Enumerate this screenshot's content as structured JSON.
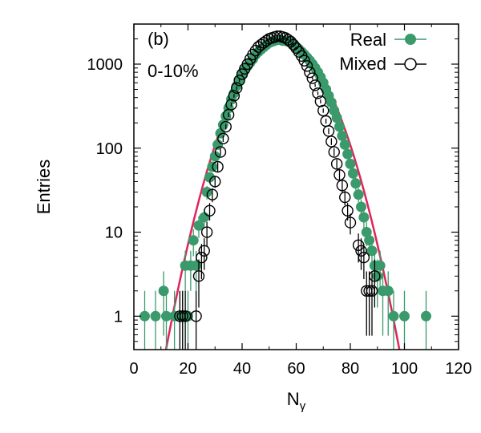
{
  "chart_data": {
    "type": "scatter",
    "panel_label": "(b)",
    "annotation": "0-10%",
    "xlabel_main": "N",
    "xlabel_sub": "γ",
    "ylabel": "Entries",
    "xlim": [
      0,
      120
    ],
    "ylim": [
      0.4,
      3000
    ],
    "yscale": "log",
    "x_ticks": [
      0,
      20,
      40,
      60,
      80,
      100,
      120
    ],
    "x_tick_labels": [
      "0",
      "20",
      "40",
      "60",
      "80",
      "100",
      "120"
    ],
    "y_ticks": [
      1,
      10,
      100,
      1000
    ],
    "y_tick_labels": [
      "1",
      "10",
      "100",
      "1000"
    ],
    "legend_position": "top-right",
    "grid": false,
    "colors": {
      "real": "#3a9a6c",
      "mixed": "#000000",
      "fit": "#e0245a"
    },
    "fit_curve": {
      "type": "gaussian",
      "mean": 55,
      "sigma": 10.5,
      "amplitude": 1850
    },
    "series": [
      {
        "name": "Real",
        "marker": "filled-circle",
        "points": [
          {
            "x": 4,
            "y": 1
          },
          {
            "x": 8,
            "y": 1
          },
          {
            "x": 11,
            "y": 2
          },
          {
            "x": 12,
            "y": 1
          },
          {
            "x": 15,
            "y": 1
          },
          {
            "x": 18,
            "y": 1
          },
          {
            "x": 20,
            "y": 1
          },
          {
            "x": 19,
            "y": 4
          },
          {
            "x": 21,
            "y": 4
          },
          {
            "x": 22,
            "y": 8
          },
          {
            "x": 23,
            "y": 4
          },
          {
            "x": 24,
            "y": 12
          },
          {
            "x": 26,
            "y": 15
          },
          {
            "x": 27,
            "y": 30
          },
          {
            "x": 28,
            "y": 45
          },
          {
            "x": 29,
            "y": 60
          },
          {
            "x": 30,
            "y": 80
          },
          {
            "x": 31,
            "y": 110
          },
          {
            "x": 32,
            "y": 150
          },
          {
            "x": 33,
            "y": 190
          },
          {
            "x": 34,
            "y": 240
          },
          {
            "x": 35,
            "y": 300
          },
          {
            "x": 36,
            "y": 380
          },
          {
            "x": 37,
            "y": 450
          },
          {
            "x": 38,
            "y": 550
          },
          {
            "x": 39,
            "y": 650
          },
          {
            "x": 40,
            "y": 750
          },
          {
            "x": 41,
            "y": 850
          },
          {
            "x": 42,
            "y": 950
          },
          {
            "x": 43,
            "y": 1050
          },
          {
            "x": 44,
            "y": 1150
          },
          {
            "x": 45,
            "y": 1300
          },
          {
            "x": 46,
            "y": 1400
          },
          {
            "x": 47,
            "y": 1500
          },
          {
            "x": 48,
            "y": 1600
          },
          {
            "x": 49,
            "y": 1700
          },
          {
            "x": 50,
            "y": 1800
          },
          {
            "x": 51,
            "y": 1850
          },
          {
            "x": 52,
            "y": 1900
          },
          {
            "x": 53,
            "y": 1950
          },
          {
            "x": 54,
            "y": 1950
          },
          {
            "x": 55,
            "y": 1900
          },
          {
            "x": 56,
            "y": 1900
          },
          {
            "x": 57,
            "y": 1850
          },
          {
            "x": 58,
            "y": 1800
          },
          {
            "x": 59,
            "y": 1700
          },
          {
            "x": 60,
            "y": 1600
          },
          {
            "x": 61,
            "y": 1500
          },
          {
            "x": 62,
            "y": 1400
          },
          {
            "x": 63,
            "y": 1300
          },
          {
            "x": 64,
            "y": 1200
          },
          {
            "x": 65,
            "y": 1100
          },
          {
            "x": 66,
            "y": 1000
          },
          {
            "x": 67,
            "y": 900
          },
          {
            "x": 68,
            "y": 800
          },
          {
            "x": 69,
            "y": 700
          },
          {
            "x": 70,
            "y": 600
          },
          {
            "x": 71,
            "y": 500
          },
          {
            "x": 72,
            "y": 420
          },
          {
            "x": 73,
            "y": 350
          },
          {
            "x": 74,
            "y": 280
          },
          {
            "x": 75,
            "y": 230
          },
          {
            "x": 76,
            "y": 180
          },
          {
            "x": 77,
            "y": 140
          },
          {
            "x": 78,
            "y": 110
          },
          {
            "x": 79,
            "y": 85
          },
          {
            "x": 80,
            "y": 65
          },
          {
            "x": 81,
            "y": 50
          },
          {
            "x": 82,
            "y": 38
          },
          {
            "x": 83,
            "y": 28
          },
          {
            "x": 84,
            "y": 20
          },
          {
            "x": 85,
            "y": 15
          },
          {
            "x": 86,
            "y": 10
          },
          {
            "x": 87,
            "y": 8
          },
          {
            "x": 88,
            "y": 6
          },
          {
            "x": 89,
            "y": 4
          },
          {
            "x": 90,
            "y": 3
          },
          {
            "x": 91,
            "y": 4
          },
          {
            "x": 92,
            "y": 2
          },
          {
            "x": 94,
            "y": 2
          },
          {
            "x": 96,
            "y": 1
          },
          {
            "x": 100,
            "y": 1
          },
          {
            "x": 108,
            "y": 1
          }
        ]
      },
      {
        "name": "Mixed",
        "marker": "open-circle",
        "points": [
          {
            "x": 17,
            "y": 1
          },
          {
            "x": 18,
            "y": 1
          },
          {
            "x": 19,
            "y": 1
          },
          {
            "x": 23,
            "y": 1
          },
          {
            "x": 24,
            "y": 3
          },
          {
            "x": 25,
            "y": 5
          },
          {
            "x": 26,
            "y": 6
          },
          {
            "x": 27,
            "y": 10
          },
          {
            "x": 28,
            "y": 18
          },
          {
            "x": 29,
            "y": 28
          },
          {
            "x": 30,
            "y": 40
          },
          {
            "x": 31,
            "y": 60
          },
          {
            "x": 32,
            "y": 90
          },
          {
            "x": 33,
            "y": 130
          },
          {
            "x": 34,
            "y": 180
          },
          {
            "x": 35,
            "y": 250
          },
          {
            "x": 36,
            "y": 330
          },
          {
            "x": 37,
            "y": 420
          },
          {
            "x": 38,
            "y": 520
          },
          {
            "x": 39,
            "y": 640
          },
          {
            "x": 40,
            "y": 760
          },
          {
            "x": 41,
            "y": 880
          },
          {
            "x": 42,
            "y": 1000
          },
          {
            "x": 43,
            "y": 1150
          },
          {
            "x": 44,
            "y": 1300
          },
          {
            "x": 45,
            "y": 1450
          },
          {
            "x": 46,
            "y": 1600
          },
          {
            "x": 47,
            "y": 1700
          },
          {
            "x": 48,
            "y": 1800
          },
          {
            "x": 49,
            "y": 1900
          },
          {
            "x": 50,
            "y": 2000
          },
          {
            "x": 51,
            "y": 2050
          },
          {
            "x": 52,
            "y": 2100
          },
          {
            "x": 53,
            "y": 2150
          },
          {
            "x": 54,
            "y": 2150
          },
          {
            "x": 55,
            "y": 2100
          },
          {
            "x": 56,
            "y": 2050
          },
          {
            "x": 57,
            "y": 1950
          },
          {
            "x": 58,
            "y": 1850
          },
          {
            "x": 59,
            "y": 1700
          },
          {
            "x": 60,
            "y": 1550
          },
          {
            "x": 61,
            "y": 1400
          },
          {
            "x": 62,
            "y": 1250
          },
          {
            "x": 63,
            "y": 1100
          },
          {
            "x": 64,
            "y": 950
          },
          {
            "x": 65,
            "y": 800
          },
          {
            "x": 66,
            "y": 680
          },
          {
            "x": 67,
            "y": 560
          },
          {
            "x": 68,
            "y": 450
          },
          {
            "x": 69,
            "y": 360
          },
          {
            "x": 70,
            "y": 280
          },
          {
            "x": 71,
            "y": 210
          },
          {
            "x": 72,
            "y": 160
          },
          {
            "x": 73,
            "y": 120
          },
          {
            "x": 74,
            "y": 90
          },
          {
            "x": 75,
            "y": 65
          },
          {
            "x": 76,
            "y": 48
          },
          {
            "x": 77,
            "y": 36
          },
          {
            "x": 78,
            "y": 26
          },
          {
            "x": 79,
            "y": 18
          },
          {
            "x": 80,
            "y": 13
          },
          {
            "x": 83,
            "y": 7
          },
          {
            "x": 84,
            "y": 6
          },
          {
            "x": 85,
            "y": 5
          },
          {
            "x": 86,
            "y": 2
          },
          {
            "x": 87,
            "y": 2
          },
          {
            "x": 88,
            "y": 2
          },
          {
            "x": 89,
            "y": 3
          }
        ]
      }
    ]
  }
}
